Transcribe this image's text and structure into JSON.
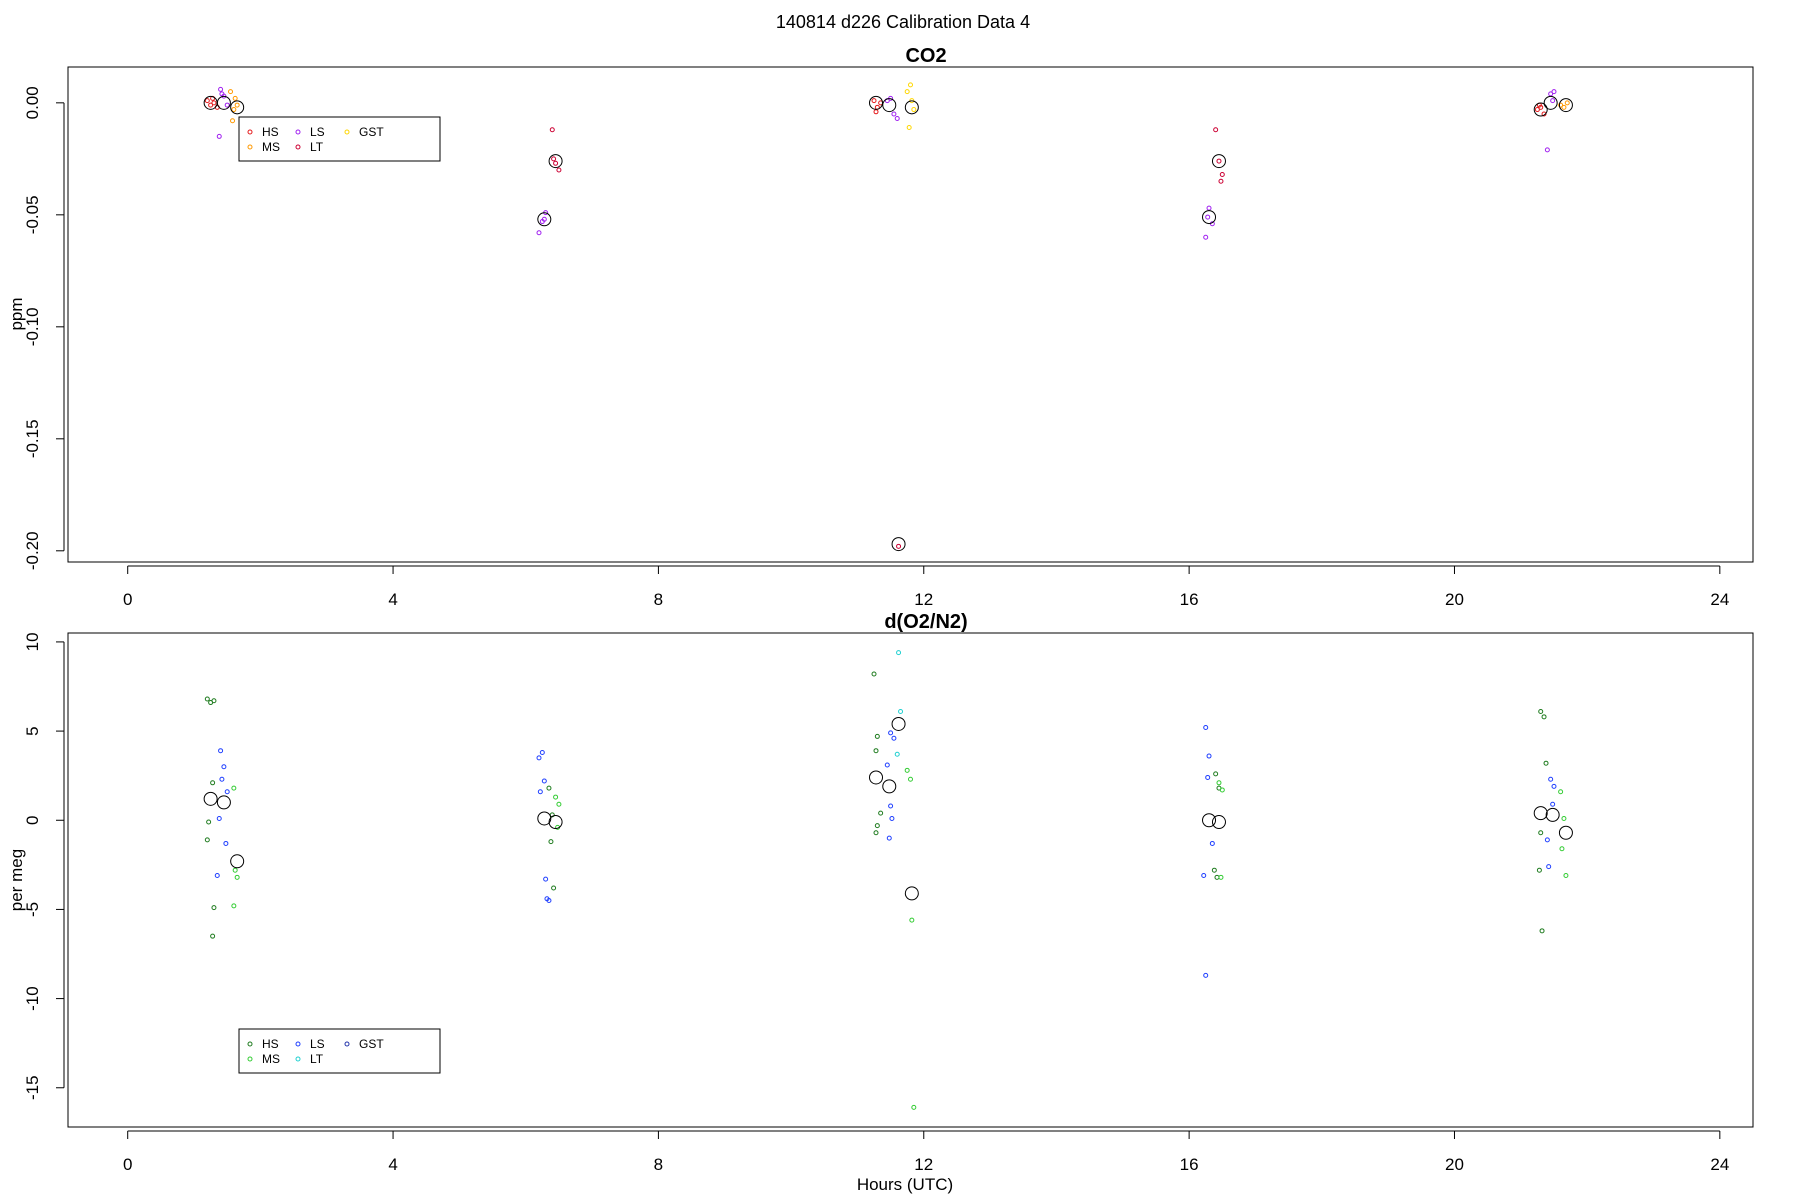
{
  "figure_title": "140814   d226   Calibration Data 4",
  "colors": {
    "HS_co2": "#e41a1c",
    "MS_co2": "#ff9900",
    "LS_co2": "#a020f0",
    "LT_co2": "#cc0033",
    "GST_co2": "#ffd700",
    "HS_o2": "#1e7b1e",
    "MS_o2": "#33cc33",
    "LS_o2": "#1f3fff",
    "LT_o2": "#20d0d0",
    "GST_o2": "#2233aa",
    "mean": "#000000"
  },
  "chart_data": [
    {
      "type": "scatter",
      "title": "CO2",
      "xlabel": "",
      "ylabel": "ppm",
      "xlim": [
        -0.9,
        24.5
      ],
      "ylim": [
        -0.205,
        0.016
      ],
      "xticks": [
        0,
        4,
        8,
        12,
        16,
        20,
        24
      ],
      "yticks": [
        -0.2,
        -0.15,
        -0.1,
        -0.05,
        0.0
      ],
      "ytick_labels": [
        "-0.20",
        "-0.15",
        "-0.10",
        "-0.05",
        "0.00"
      ],
      "legend": {
        "position": "top-left",
        "entries": [
          "HS",
          "MS",
          "LS",
          "LT",
          "GST"
        ]
      },
      "series": [
        {
          "name": "HS",
          "color_key": "HS_co2",
          "points": [
            [
              1.2,
              0.001
            ],
            [
              1.25,
              -0.001
            ],
            [
              1.3,
              0.0
            ],
            [
              1.35,
              -0.002
            ],
            [
              1.28,
              0.002
            ],
            [
              11.25,
              0.001
            ],
            [
              11.3,
              -0.002
            ],
            [
              11.35,
              0.0
            ],
            [
              11.28,
              -0.004
            ],
            [
              21.25,
              -0.003
            ],
            [
              21.3,
              -0.002
            ],
            [
              21.35,
              -0.005
            ],
            [
              21.28,
              -0.001
            ]
          ]
        },
        {
          "name": "MS",
          "color_key": "MS_co2",
          "points": [
            [
              1.55,
              0.005
            ],
            [
              1.6,
              -0.003
            ],
            [
              1.65,
              -0.001
            ],
            [
              1.58,
              -0.008
            ],
            [
              1.62,
              0.002
            ],
            [
              21.6,
              -0.001
            ],
            [
              21.65,
              -0.002
            ],
            [
              21.7,
              0.0
            ]
          ]
        },
        {
          "name": "LS",
          "color_key": "LS_co2",
          "points": [
            [
              1.4,
              0.006
            ],
            [
              1.45,
              0.003
            ],
            [
              1.5,
              -0.001
            ],
            [
              1.38,
              -0.015
            ],
            [
              1.42,
              0.004
            ],
            [
              6.2,
              -0.058
            ],
            [
              6.25,
              -0.053
            ],
            [
              6.3,
              -0.049
            ],
            [
              6.28,
              -0.052
            ],
            [
              11.5,
              0.002
            ],
            [
              11.55,
              -0.005
            ],
            [
              11.6,
              -0.007
            ],
            [
              11.45,
              0.001
            ],
            [
              16.25,
              -0.06
            ],
            [
              16.3,
              -0.047
            ],
            [
              16.35,
              -0.054
            ],
            [
              16.28,
              -0.051
            ],
            [
              21.45,
              0.004
            ],
            [
              21.5,
              0.005
            ],
            [
              21.4,
              -0.021
            ],
            [
              21.48,
              0.001
            ]
          ]
        },
        {
          "name": "LT",
          "color_key": "LT_co2",
          "points": [
            [
              6.4,
              -0.012
            ],
            [
              6.45,
              -0.027
            ],
            [
              6.5,
              -0.03
            ],
            [
              6.42,
              -0.025
            ],
            [
              11.62,
              -0.198
            ],
            [
              16.4,
              -0.012
            ],
            [
              16.45,
              -0.026
            ],
            [
              16.5,
              -0.032
            ],
            [
              16.48,
              -0.035
            ]
          ]
        },
        {
          "name": "GST",
          "color_key": "GST_co2",
          "points": [
            [
              11.75,
              0.005
            ],
            [
              11.8,
              0.008
            ],
            [
              11.85,
              -0.003
            ],
            [
              11.78,
              -0.011
            ],
            [
              11.82,
              0.001
            ]
          ]
        },
        {
          "name": "mean",
          "color_key": "mean",
          "marker": "large-open-circle",
          "points": [
            [
              1.25,
              0.0
            ],
            [
              1.45,
              0.0
            ],
            [
              1.65,
              -0.002
            ],
            [
              6.28,
              -0.052
            ],
            [
              6.45,
              -0.026
            ],
            [
              11.28,
              0.0
            ],
            [
              11.48,
              -0.001
            ],
            [
              11.82,
              -0.002
            ],
            [
              11.62,
              -0.197
            ],
            [
              16.3,
              -0.051
            ],
            [
              16.45,
              -0.026
            ],
            [
              21.3,
              -0.003
            ],
            [
              21.45,
              0.0
            ],
            [
              21.68,
              -0.001
            ]
          ]
        }
      ]
    },
    {
      "type": "scatter",
      "title": "d(O2/N2)",
      "xlabel": "Hours (UTC)",
      "ylabel": "per meg",
      "xlim": [
        -0.9,
        24.5
      ],
      "ylim": [
        -17.2,
        10.5
      ],
      "xticks": [
        0,
        4,
        8,
        12,
        16,
        20,
        24
      ],
      "yticks": [
        -15,
        -10,
        -5,
        0,
        5,
        10
      ],
      "ytick_labels": [
        "-15",
        "-10",
        "-5",
        "0",
        "5",
        "10"
      ],
      "legend": {
        "position": "bottom-left",
        "entries": [
          "HS",
          "MS",
          "LS",
          "LT",
          "GST"
        ]
      },
      "series": [
        {
          "name": "HS",
          "color_key": "HS_o2",
          "points": [
            [
              1.2,
              6.8
            ],
            [
              1.25,
              6.6
            ],
            [
              1.3,
              6.7
            ],
            [
              1.28,
              2.1
            ],
            [
              1.22,
              -0.1
            ],
            [
              1.2,
              -1.1
            ],
            [
              1.3,
              -4.9
            ],
            [
              1.28,
              -6.5
            ],
            [
              6.35,
              1.8
            ],
            [
              6.4,
              0.3
            ],
            [
              6.38,
              -1.2
            ],
            [
              6.42,
              -3.8
            ],
            [
              11.25,
              8.2
            ],
            [
              11.3,
              4.7
            ],
            [
              11.28,
              3.9
            ],
            [
              11.35,
              0.4
            ],
            [
              11.3,
              -0.3
            ],
            [
              11.28,
              -0.7
            ],
            [
              16.4,
              2.6
            ],
            [
              16.45,
              1.8
            ],
            [
              16.38,
              -2.8
            ],
            [
              16.42,
              -3.2
            ],
            [
              21.3,
              6.1
            ],
            [
              21.35,
              5.8
            ],
            [
              21.38,
              3.2
            ],
            [
              21.3,
              -0.7
            ],
            [
              21.28,
              -2.8
            ],
            [
              21.32,
              -6.2
            ]
          ]
        },
        {
          "name": "MS",
          "color_key": "MS_o2",
          "points": [
            [
              1.6,
              1.8
            ],
            [
              1.65,
              -3.2
            ],
            [
              1.62,
              -2.8
            ],
            [
              1.6,
              -4.8
            ],
            [
              6.45,
              1.3
            ],
            [
              6.5,
              0.9
            ],
            [
              6.48,
              -0.4
            ],
            [
              11.75,
              2.8
            ],
            [
              11.8,
              2.3
            ],
            [
              11.82,
              -5.6
            ],
            [
              11.85,
              -16.1
            ],
            [
              16.45,
              2.1
            ],
            [
              16.5,
              1.7
            ],
            [
              16.48,
              -3.2
            ],
            [
              21.6,
              1.6
            ],
            [
              21.65,
              0.1
            ],
            [
              21.62,
              -1.6
            ],
            [
              21.68,
              -3.1
            ]
          ]
        },
        {
          "name": "LS",
          "color_key": "LS_o2",
          "points": [
            [
              1.4,
              3.9
            ],
            [
              1.45,
              3.0
            ],
            [
              1.42,
              2.3
            ],
            [
              1.5,
              1.6
            ],
            [
              1.38,
              0.1
            ],
            [
              1.48,
              -1.3
            ],
            [
              1.35,
              -3.1
            ],
            [
              6.2,
              3.5
            ],
            [
              6.25,
              3.8
            ],
            [
              6.28,
              2.2
            ],
            [
              6.22,
              1.6
            ],
            [
              6.3,
              -3.3
            ],
            [
              6.32,
              -4.4
            ],
            [
              6.35,
              -4.5
            ],
            [
              11.5,
              4.9
            ],
            [
              11.55,
              4.6
            ],
            [
              11.45,
              3.1
            ],
            [
              11.5,
              0.8
            ],
            [
              11.52,
              0.1
            ],
            [
              11.48,
              -1.0
            ],
            [
              16.25,
              5.2
            ],
            [
              16.3,
              3.6
            ],
            [
              16.28,
              2.4
            ],
            [
              16.35,
              -1.3
            ],
            [
              16.22,
              -3.1
            ],
            [
              16.25,
              -8.7
            ],
            [
              21.45,
              2.3
            ],
            [
              21.5,
              1.9
            ],
            [
              21.48,
              0.9
            ],
            [
              21.4,
              -1.1
            ],
            [
              21.42,
              -2.6
            ]
          ]
        },
        {
          "name": "LT",
          "color_key": "LT_o2",
          "points": [
            [
              11.62,
              9.4
            ],
            [
              11.65,
              6.1
            ],
            [
              11.6,
              3.7
            ]
          ]
        },
        {
          "name": "GST",
          "color_key": "GST_o2",
          "points": []
        },
        {
          "name": "mean",
          "color_key": "mean",
          "marker": "large-open-circle",
          "points": [
            [
              1.25,
              1.2
            ],
            [
              1.45,
              1.0
            ],
            [
              1.65,
              -2.3
            ],
            [
              6.28,
              0.1
            ],
            [
              6.45,
              -0.1
            ],
            [
              11.28,
              2.4
            ],
            [
              11.48,
              1.9
            ],
            [
              11.62,
              5.4
            ],
            [
              11.82,
              -4.1
            ],
            [
              16.3,
              0.0
            ],
            [
              16.45,
              -0.1
            ],
            [
              21.3,
              0.4
            ],
            [
              21.48,
              0.3
            ],
            [
              21.68,
              -0.7
            ]
          ]
        }
      ]
    }
  ]
}
